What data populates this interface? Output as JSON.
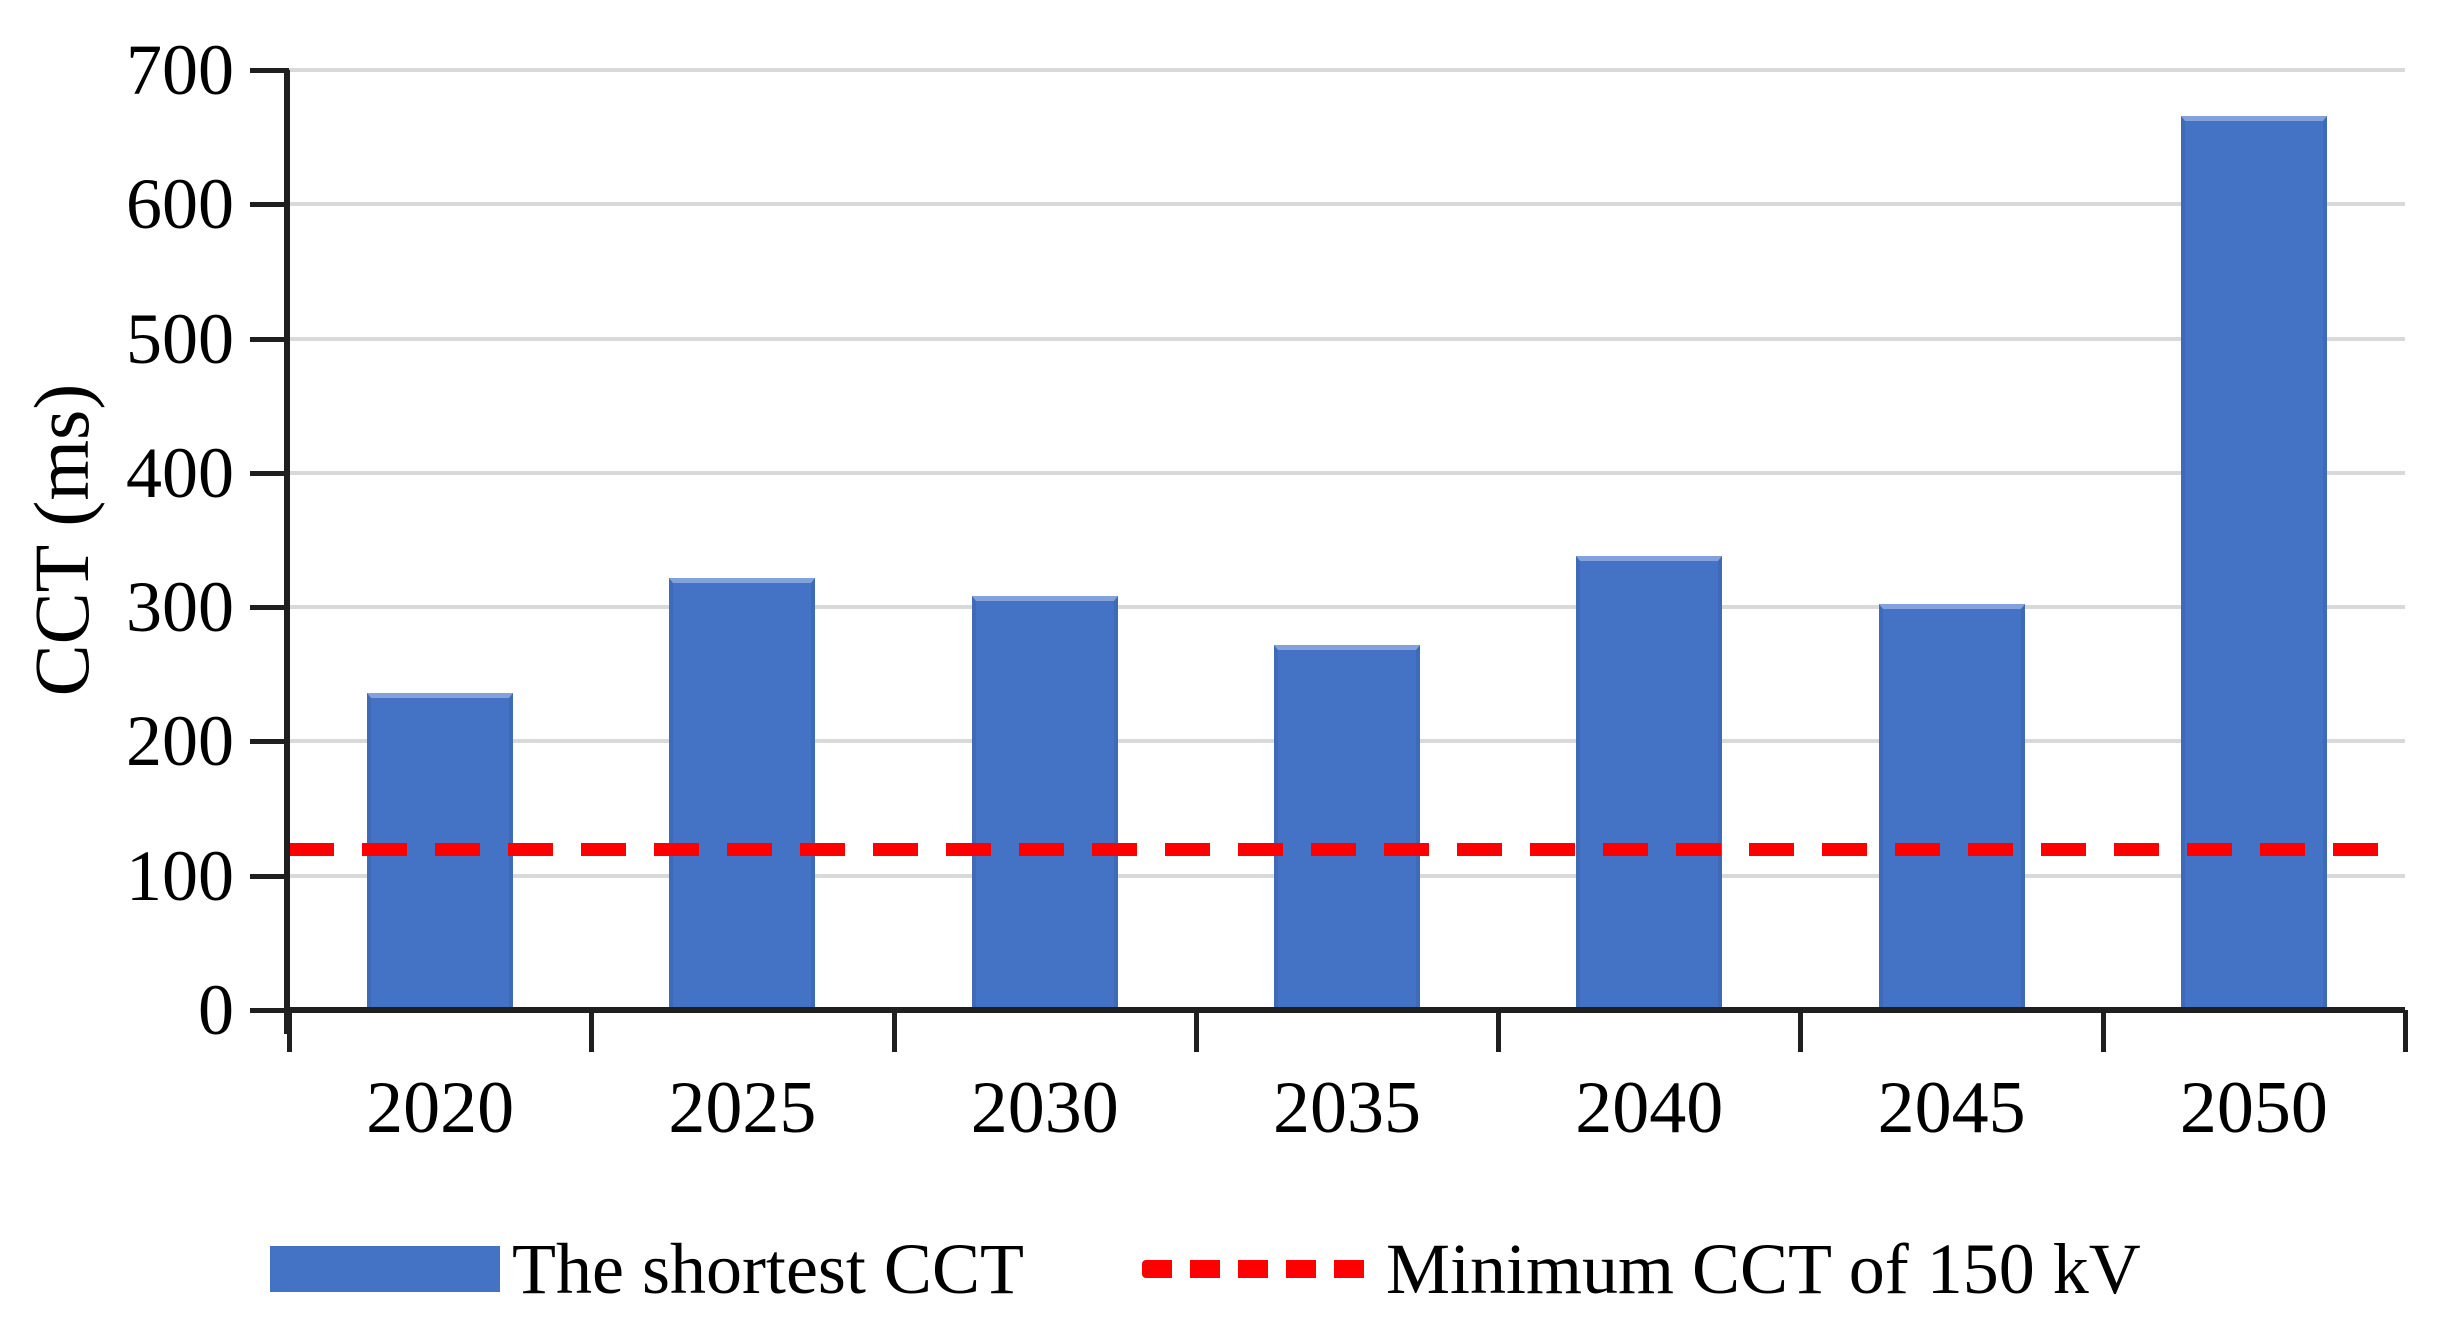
{
  "chart_data": {
    "type": "bar",
    "title": "",
    "ylabel": "CCT (ms)",
    "xlabel": "",
    "ylim": [
      0,
      700
    ],
    "ytick_step": 100,
    "ytick_labels": [
      "0",
      "100",
      "200",
      "300",
      "400",
      "500",
      "600",
      "700"
    ],
    "grid": true,
    "legend_position": "bottom",
    "categories": [
      "2020",
      "2025",
      "2030",
      "2035",
      "2040",
      "2045",
      "2050"
    ],
    "series": [
      {
        "name": "The shortest CCT",
        "values": [
          236,
          322,
          308,
          272,
          338,
          302,
          666
        ]
      }
    ],
    "reference_line": {
      "label": "Minimum CCT of 150 kV",
      "value": 120
    },
    "colors": {
      "bar": "#4472C4",
      "bar_edge_light": "#83A1DA",
      "bar_edge_dark": "#3F6AB8",
      "reference_line": "#FF0000",
      "gridline": "#D9D9D9",
      "axis": "#1F1F1F",
      "text": "#000000"
    }
  }
}
